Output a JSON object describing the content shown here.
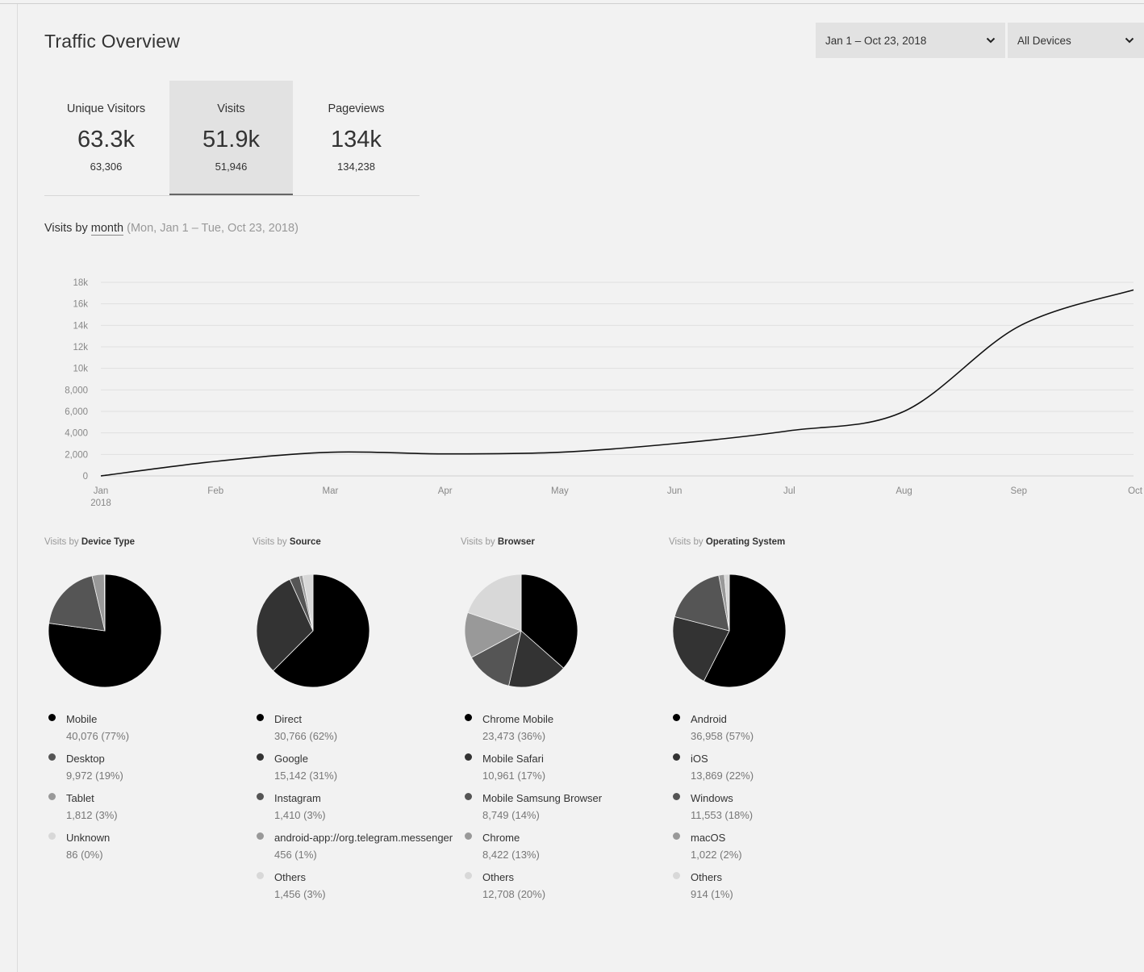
{
  "page": {
    "title": "Traffic Overview"
  },
  "filters": {
    "date_range": "Jan 1 – Oct 23, 2018",
    "device": "All Devices"
  },
  "stats": [
    {
      "label": "Unique Visitors",
      "value_short": "63.3k",
      "value": "63,306"
    },
    {
      "label": "Visits",
      "value_short": "51.9k",
      "value": "51,946",
      "active": true
    },
    {
      "label": "Pageviews",
      "value_short": "134k",
      "value": "134,238"
    }
  ],
  "chart_heading": {
    "prefix": "Visits by",
    "period": "month",
    "range": "(Mon, Jan 1 – Tue, Oct 23, 2018)"
  },
  "chart_data": {
    "type": "line",
    "x": [
      "Jan",
      "Feb",
      "Mar",
      "Apr",
      "May",
      "Jun",
      "Jul",
      "Aug",
      "Sep",
      "Oct"
    ],
    "x_sublabel_first": "2018",
    "y": [
      0,
      1350,
      2200,
      2050,
      2200,
      3000,
      4200,
      6000,
      13900,
      17300
    ],
    "y_ticks": [
      "0",
      "2,000",
      "4,000",
      "6,000",
      "8,000",
      "10k",
      "12k",
      "14k",
      "16k",
      "18k"
    ],
    "ylim": [
      0,
      18000
    ],
    "grid": true
  },
  "pies": [
    {
      "title_prefix": "Visits by",
      "title": "Device Type",
      "items": [
        {
          "name": "Mobile",
          "detail": "40,076 (77%)",
          "value": 40076,
          "color": "#000000"
        },
        {
          "name": "Desktop",
          "detail": "9,972 (19%)",
          "value": 9972,
          "color": "#555555"
        },
        {
          "name": "Tablet",
          "detail": "1,812 (3%)",
          "value": 1812,
          "color": "#999999"
        },
        {
          "name": "Unknown",
          "detail": "86 (0%)",
          "value": 86,
          "color": "#d8d8d8"
        }
      ]
    },
    {
      "title_prefix": "Visits by",
      "title": "Source",
      "items": [
        {
          "name": "Direct",
          "detail": "30,766 (62%)",
          "value": 30766,
          "color": "#000000"
        },
        {
          "name": "Google",
          "detail": "15,142 (31%)",
          "value": 15142,
          "color": "#333333"
        },
        {
          "name": "Instagram",
          "detail": "1,410 (3%)",
          "value": 1410,
          "color": "#555555"
        },
        {
          "name": "android-app://org.telegram.messenger",
          "detail": "456 (1%)",
          "value": 456,
          "color": "#999999"
        },
        {
          "name": "Others",
          "detail": "1,456 (3%)",
          "value": 1456,
          "color": "#d8d8d8"
        }
      ]
    },
    {
      "title_prefix": "Visits by",
      "title": "Browser",
      "items": [
        {
          "name": "Chrome Mobile",
          "detail": "23,473 (36%)",
          "value": 23473,
          "color": "#000000"
        },
        {
          "name": "Mobile Safari",
          "detail": "10,961 (17%)",
          "value": 10961,
          "color": "#333333"
        },
        {
          "name": "Mobile Samsung Browser",
          "detail": "8,749 (14%)",
          "value": 8749,
          "color": "#555555"
        },
        {
          "name": "Chrome",
          "detail": "8,422 (13%)",
          "value": 8422,
          "color": "#999999"
        },
        {
          "name": "Others",
          "detail": "12,708 (20%)",
          "value": 12708,
          "color": "#d8d8d8"
        }
      ]
    },
    {
      "title_prefix": "Visits by",
      "title": "Operating System",
      "items": [
        {
          "name": "Android",
          "detail": "36,958 (57%)",
          "value": 36958,
          "color": "#000000"
        },
        {
          "name": "iOS",
          "detail": "13,869 (22%)",
          "value": 13869,
          "color": "#333333"
        },
        {
          "name": "Windows",
          "detail": "11,553 (18%)",
          "value": 11553,
          "color": "#555555"
        },
        {
          "name": "macOS",
          "detail": "1,022 (2%)",
          "value": 1022,
          "color": "#999999"
        },
        {
          "name": "Others",
          "detail": "914 (1%)",
          "value": 914,
          "color": "#d8d8d8"
        }
      ]
    }
  ]
}
